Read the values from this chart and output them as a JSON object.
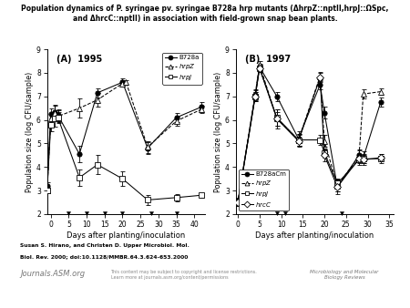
{
  "title_line1": "Population dynamics of P. syringae pv. syringae B728a hrp mutants (ΔhrpZ::nptII,hrpJ::ΩSpc,",
  "title_line2": "and ΔhrcC::nptII) in association with field-grown snap bean plants.",
  "panel_A": {
    "label": "(A)  1995",
    "xlim": [
      -1,
      43
    ],
    "ylim": [
      2,
      9
    ],
    "xticks": [
      0,
      5,
      10,
      15,
      20,
      25,
      30,
      35,
      40
    ],
    "yticks": [
      2,
      3,
      4,
      5,
      6,
      7,
      8,
      9
    ],
    "xlabel": "Days after planting/inoculation",
    "ylabel": "Population size (log CFU/sample)",
    "rain_days": [
      5,
      10,
      15,
      20,
      28,
      35
    ],
    "series": {
      "B728a": {
        "x": [
          -1,
          0,
          1,
          2,
          8,
          13,
          20,
          27,
          35,
          42
        ],
        "y": [
          3.2,
          6.25,
          6.35,
          6.2,
          4.55,
          7.15,
          7.6,
          4.8,
          6.1,
          6.55
        ],
        "yerr": [
          0.15,
          0.25,
          0.3,
          0.25,
          0.35,
          0.2,
          0.15,
          0.25,
          0.2,
          0.2
        ],
        "marker": "o",
        "filled": true,
        "linestyle": "-"
      },
      "hrpZ": {
        "x": [
          -1,
          0,
          1,
          2,
          8,
          13,
          20,
          21,
          27,
          35,
          42
        ],
        "y": [
          3.0,
          6.05,
          6.3,
          6.15,
          6.5,
          6.85,
          7.55,
          7.6,
          4.85,
          5.95,
          6.45
        ],
        "yerr": [
          0.1,
          0.25,
          0.3,
          0.25,
          0.4,
          0.3,
          0.15,
          0.1,
          0.25,
          0.2,
          0.15
        ],
        "marker": "^",
        "filled": false,
        "linestyle": "--"
      },
      "hrpJ": {
        "x": [
          -1,
          0,
          1,
          2,
          8,
          13,
          20,
          27,
          35,
          42
        ],
        "y": [
          3.0,
          5.8,
          6.05,
          6.1,
          3.55,
          4.1,
          3.5,
          2.6,
          2.7,
          2.8
        ],
        "yerr": [
          0.1,
          0.3,
          0.35,
          0.25,
          0.35,
          0.4,
          0.3,
          0.2,
          0.15,
          0.1
        ],
        "marker": "s",
        "filled": false,
        "linestyle": "-"
      }
    },
    "legend_entries": [
      "B728a",
      "hrpZ",
      "hrpJ"
    ],
    "legend_italic": [
      false,
      true,
      true
    ],
    "legend_markers": [
      "o",
      "^",
      "s"
    ],
    "legend_filled": [
      true,
      false,
      false
    ],
    "legend_ls": [
      "-",
      "--",
      "-"
    ],
    "legend_loc": "upper right"
  },
  "panel_B": {
    "label": "(B)  1997",
    "xlim": [
      -0.5,
      36
    ],
    "ylim": [
      2,
      9
    ],
    "xticks": [
      0,
      5,
      10,
      15,
      20,
      25,
      30,
      35
    ],
    "yticks": [
      2,
      3,
      4,
      5,
      6,
      7,
      8,
      9
    ],
    "xlabel": "Days after planting/inoculation",
    "ylabel": "Population size (log CFU/sample)",
    "rain_days": [
      9,
      11,
      24
    ],
    "series": {
      "B728aCm": {
        "x": [
          0,
          4,
          5,
          9,
          14,
          19,
          20,
          23,
          28,
          29,
          33
        ],
        "y": [
          2.55,
          7.05,
          8.25,
          7.0,
          5.2,
          7.5,
          6.3,
          3.15,
          4.5,
          4.4,
          6.75
        ],
        "yerr": [
          0.15,
          0.2,
          0.15,
          0.2,
          0.3,
          0.2,
          0.25,
          0.3,
          0.25,
          0.25,
          0.2
        ],
        "marker": "o",
        "filled": true,
        "linestyle": "-"
      },
      "hrpZ": {
        "x": [
          0,
          4,
          5,
          9,
          14,
          19,
          20,
          23,
          28,
          29,
          33
        ],
        "y": [
          2.5,
          7.1,
          8.35,
          6.05,
          5.15,
          7.85,
          5.1,
          3.2,
          4.45,
          7.1,
          7.2
        ],
        "yerr": [
          0.15,
          0.2,
          0.15,
          0.4,
          0.25,
          0.2,
          0.25,
          0.25,
          0.25,
          0.2,
          0.15
        ],
        "marker": "^",
        "filled": false,
        "linestyle": "--"
      },
      "hrpJ": {
        "x": [
          0,
          4,
          5,
          9,
          14,
          19,
          20,
          23,
          28,
          29,
          33
        ],
        "y": [
          2.5,
          7.0,
          8.2,
          6.1,
          5.15,
          5.15,
          4.6,
          3.3,
          4.3,
          4.35,
          4.35
        ],
        "yerr": [
          0.15,
          0.2,
          0.15,
          0.35,
          0.25,
          0.2,
          0.2,
          0.2,
          0.2,
          0.2,
          0.2
        ],
        "marker": "s",
        "filled": false,
        "linestyle": "-"
      },
      "hrcC": {
        "x": [
          0,
          4,
          5,
          9,
          14,
          19,
          20,
          23,
          28,
          29,
          33
        ],
        "y": [
          2.5,
          7.0,
          8.2,
          6.05,
          5.1,
          7.8,
          4.5,
          3.15,
          4.35,
          4.3,
          4.4
        ],
        "yerr": [
          0.15,
          0.2,
          0.15,
          0.3,
          0.25,
          0.2,
          0.25,
          0.2,
          0.2,
          0.2,
          0.15
        ],
        "marker": "D",
        "filled": false,
        "linestyle": "-"
      }
    },
    "legend_entries": [
      "B728aCm",
      "hrpZ",
      "hrpJ",
      "hrcC"
    ],
    "legend_italic": [
      false,
      true,
      true,
      true
    ],
    "legend_markers": [
      "o",
      "^",
      "s",
      "D"
    ],
    "legend_filled": [
      true,
      false,
      false,
      false
    ],
    "legend_ls": [
      "-",
      "--",
      "-",
      "-"
    ],
    "legend_loc": "lower left"
  },
  "footer_bold1": "Susan S. Hirano, and Christen D. Upper Microbiol. Mol.",
  "footer_bold2": "Biol. Rev. 2000; doi:10.1128/MMBR.64.3.624-653.2000",
  "journal_text": "Journals.ASM.org",
  "footer_note": "This content may be subject to copyright and license restrictions.\nLearn more at journals.asm.org/content/permissions",
  "journal_right": "Microbiology and Molecular\nBiology Reviews",
  "bg_color": "#ffffff"
}
